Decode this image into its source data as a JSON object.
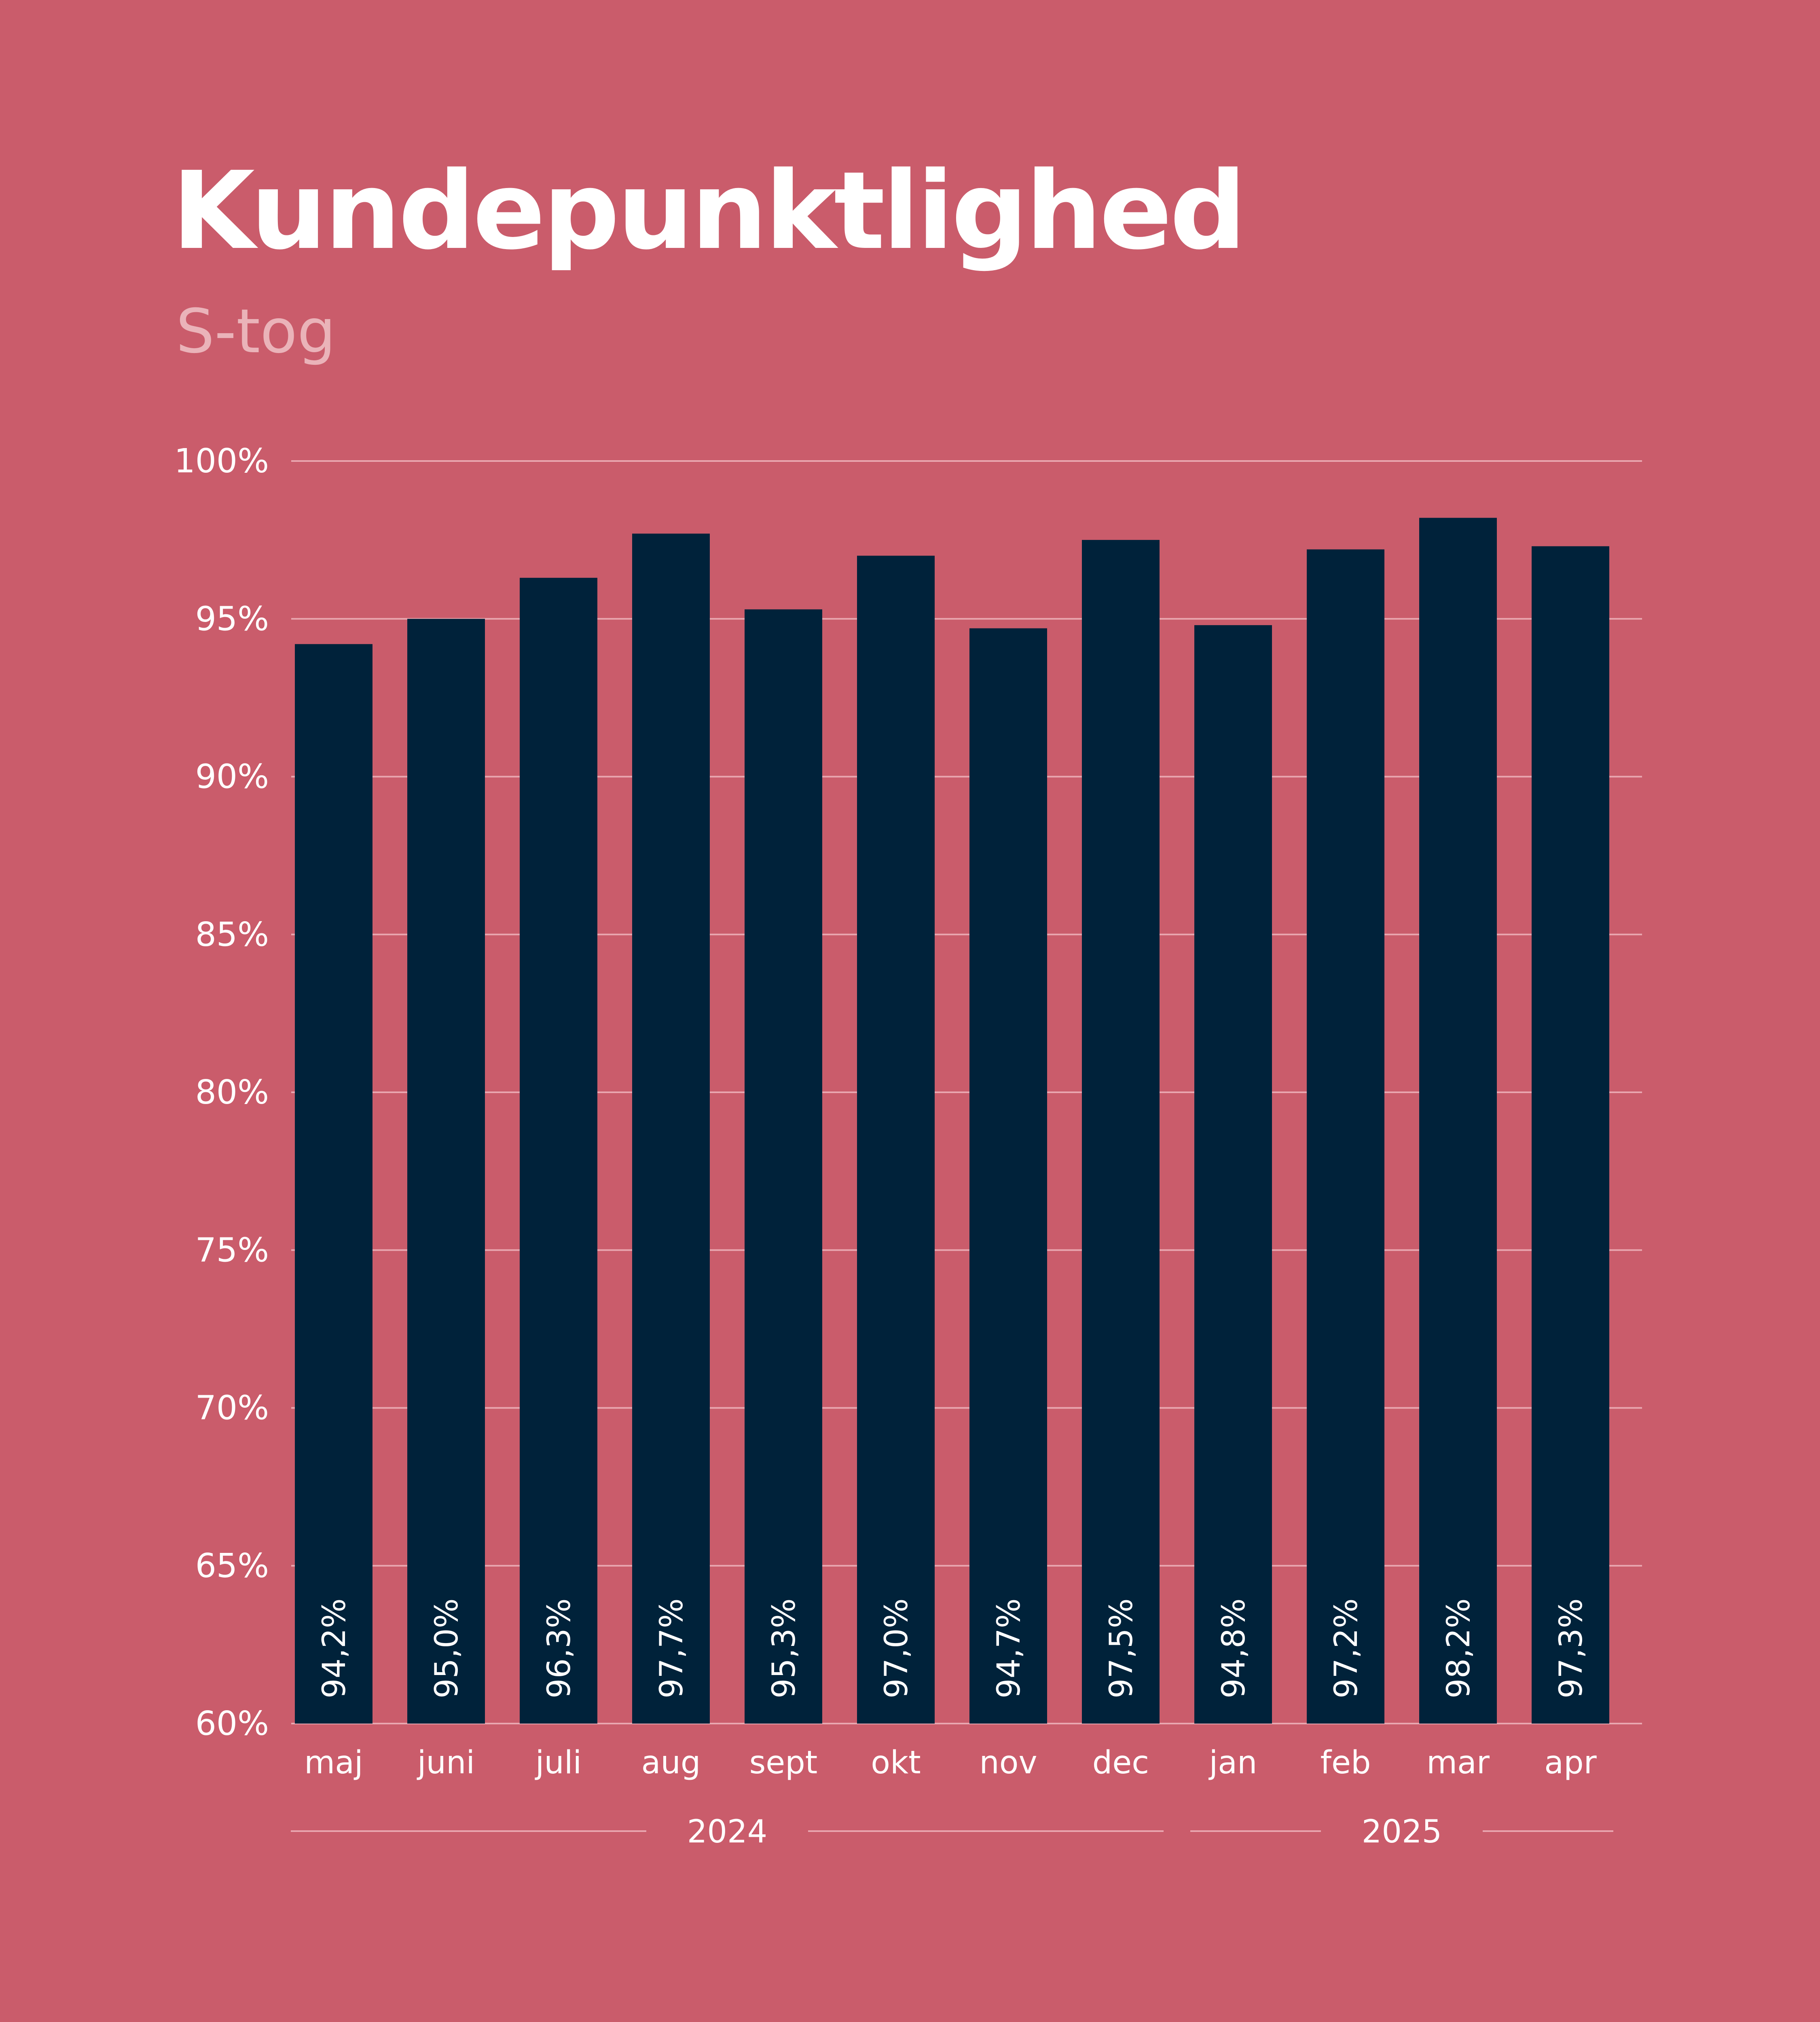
{
  "title": "Kundepunktlighed",
  "subtitle": "S-tog",
  "colors": {
    "background": "#ca5c6b",
    "bar": "#00223a",
    "text": "#ffffff",
    "subtitle": "#eab3b9",
    "gridline": "#e9a7b0"
  },
  "chart_data": {
    "type": "bar",
    "title": "Kundepunktlighed",
    "subtitle": "S-tog",
    "categories": [
      "maj",
      "juni",
      "juli",
      "aug",
      "sept",
      "okt",
      "nov",
      "dec",
      "jan",
      "feb",
      "mar",
      "apr"
    ],
    "values": [
      94.2,
      95.0,
      96.3,
      97.7,
      95.3,
      97.0,
      94.7,
      97.5,
      94.8,
      97.2,
      98.2,
      97.3
    ],
    "value_labels": [
      "94,2%",
      "95,0%",
      "96,3%",
      "97,7%",
      "95,3%",
      "97,0%",
      "94,7%",
      "97,5%",
      "94,8%",
      "97,2%",
      "98,2%",
      "97,3%"
    ],
    "ylim": [
      60,
      100
    ],
    "y_ticks": [
      60,
      65,
      70,
      75,
      80,
      85,
      90,
      95,
      100
    ],
    "y_tick_labels": [
      "60%",
      "65%",
      "70%",
      "75%",
      "80%",
      "85%",
      "90%",
      "95%",
      "100%"
    ],
    "year_groups": [
      {
        "label": "2024",
        "first_category": 0,
        "last_category": 7
      },
      {
        "label": "2025",
        "first_category": 8,
        "last_category": 11
      }
    ],
    "grid": true,
    "legend": "none"
  }
}
